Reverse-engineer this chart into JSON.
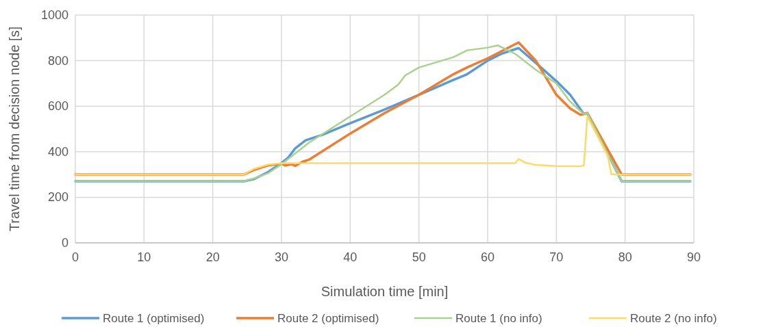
{
  "chart_data": {
    "type": "line",
    "xlabel": "Simulation time [min]",
    "ylabel": "Travel time from decision node [s]",
    "xlim": [
      0,
      90
    ],
    "xticks": [
      0,
      10,
      20,
      30,
      40,
      50,
      60,
      70,
      80,
      90
    ],
    "ylim": [
      0,
      1000
    ],
    "yticks": [
      0,
      200,
      400,
      600,
      800,
      1000
    ],
    "grid": true,
    "legend": "bottom",
    "marker": "none",
    "series": [
      {
        "name": "Route 1 (optimised)",
        "color": "#5b9bd5",
        "x": [
          0,
          24.5,
          26,
          28,
          30,
          31,
          32,
          33.5,
          36,
          40,
          45,
          50,
          55,
          57,
          60,
          62,
          64.5,
          67,
          70,
          72,
          74,
          74.5,
          79.5,
          89.5
        ],
        "values": [
          270,
          270,
          280,
          310,
          350,
          375,
          415,
          450,
          475,
          525,
          585,
          650,
          715,
          740,
          800,
          830,
          855,
          790,
          710,
          650,
          565,
          570,
          270,
          270
        ]
      },
      {
        "name": "Route 2 (optimised)",
        "color": "#ed7d31",
        "x": [
          0,
          24.5,
          26,
          28,
          30,
          30.5,
          31.5,
          32,
          33,
          34,
          40,
          45,
          50,
          55,
          57,
          60,
          64.5,
          67,
          70,
          72,
          73.5,
          74.5,
          79.5,
          89.5
        ],
        "values": [
          300,
          300,
          320,
          340,
          348,
          340,
          345,
          338,
          355,
          365,
          480,
          570,
          650,
          740,
          770,
          810,
          880,
          800,
          650,
          590,
          562,
          570,
          300,
          300
        ]
      },
      {
        "name": "Route 1 (no info)",
        "color": "#a9d18e",
        "x": [
          0,
          24.5,
          26,
          28,
          30,
          34,
          40,
          45,
          47,
          48,
          50,
          55,
          57,
          60,
          61.5,
          64,
          67,
          70,
          72,
          74,
          74.5,
          79.5,
          89.5
        ],
        "values": [
          270,
          270,
          283,
          305,
          345,
          440,
          555,
          650,
          695,
          735,
          770,
          815,
          845,
          857,
          867,
          830,
          760,
          700,
          620,
          565,
          570,
          270,
          270
        ]
      },
      {
        "name": "Route 2 (no info)",
        "color": "#ffd966",
        "x": [
          0,
          24.5,
          26,
          28,
          30,
          64,
          64.5,
          65.5,
          67,
          70,
          73.5,
          74,
          74.5,
          77.5,
          78,
          89.5
        ],
        "values": [
          300,
          300,
          325,
          343,
          350,
          350,
          368,
          352,
          342,
          337,
          336,
          340,
          555,
          380,
          300,
          300
        ]
      }
    ]
  }
}
